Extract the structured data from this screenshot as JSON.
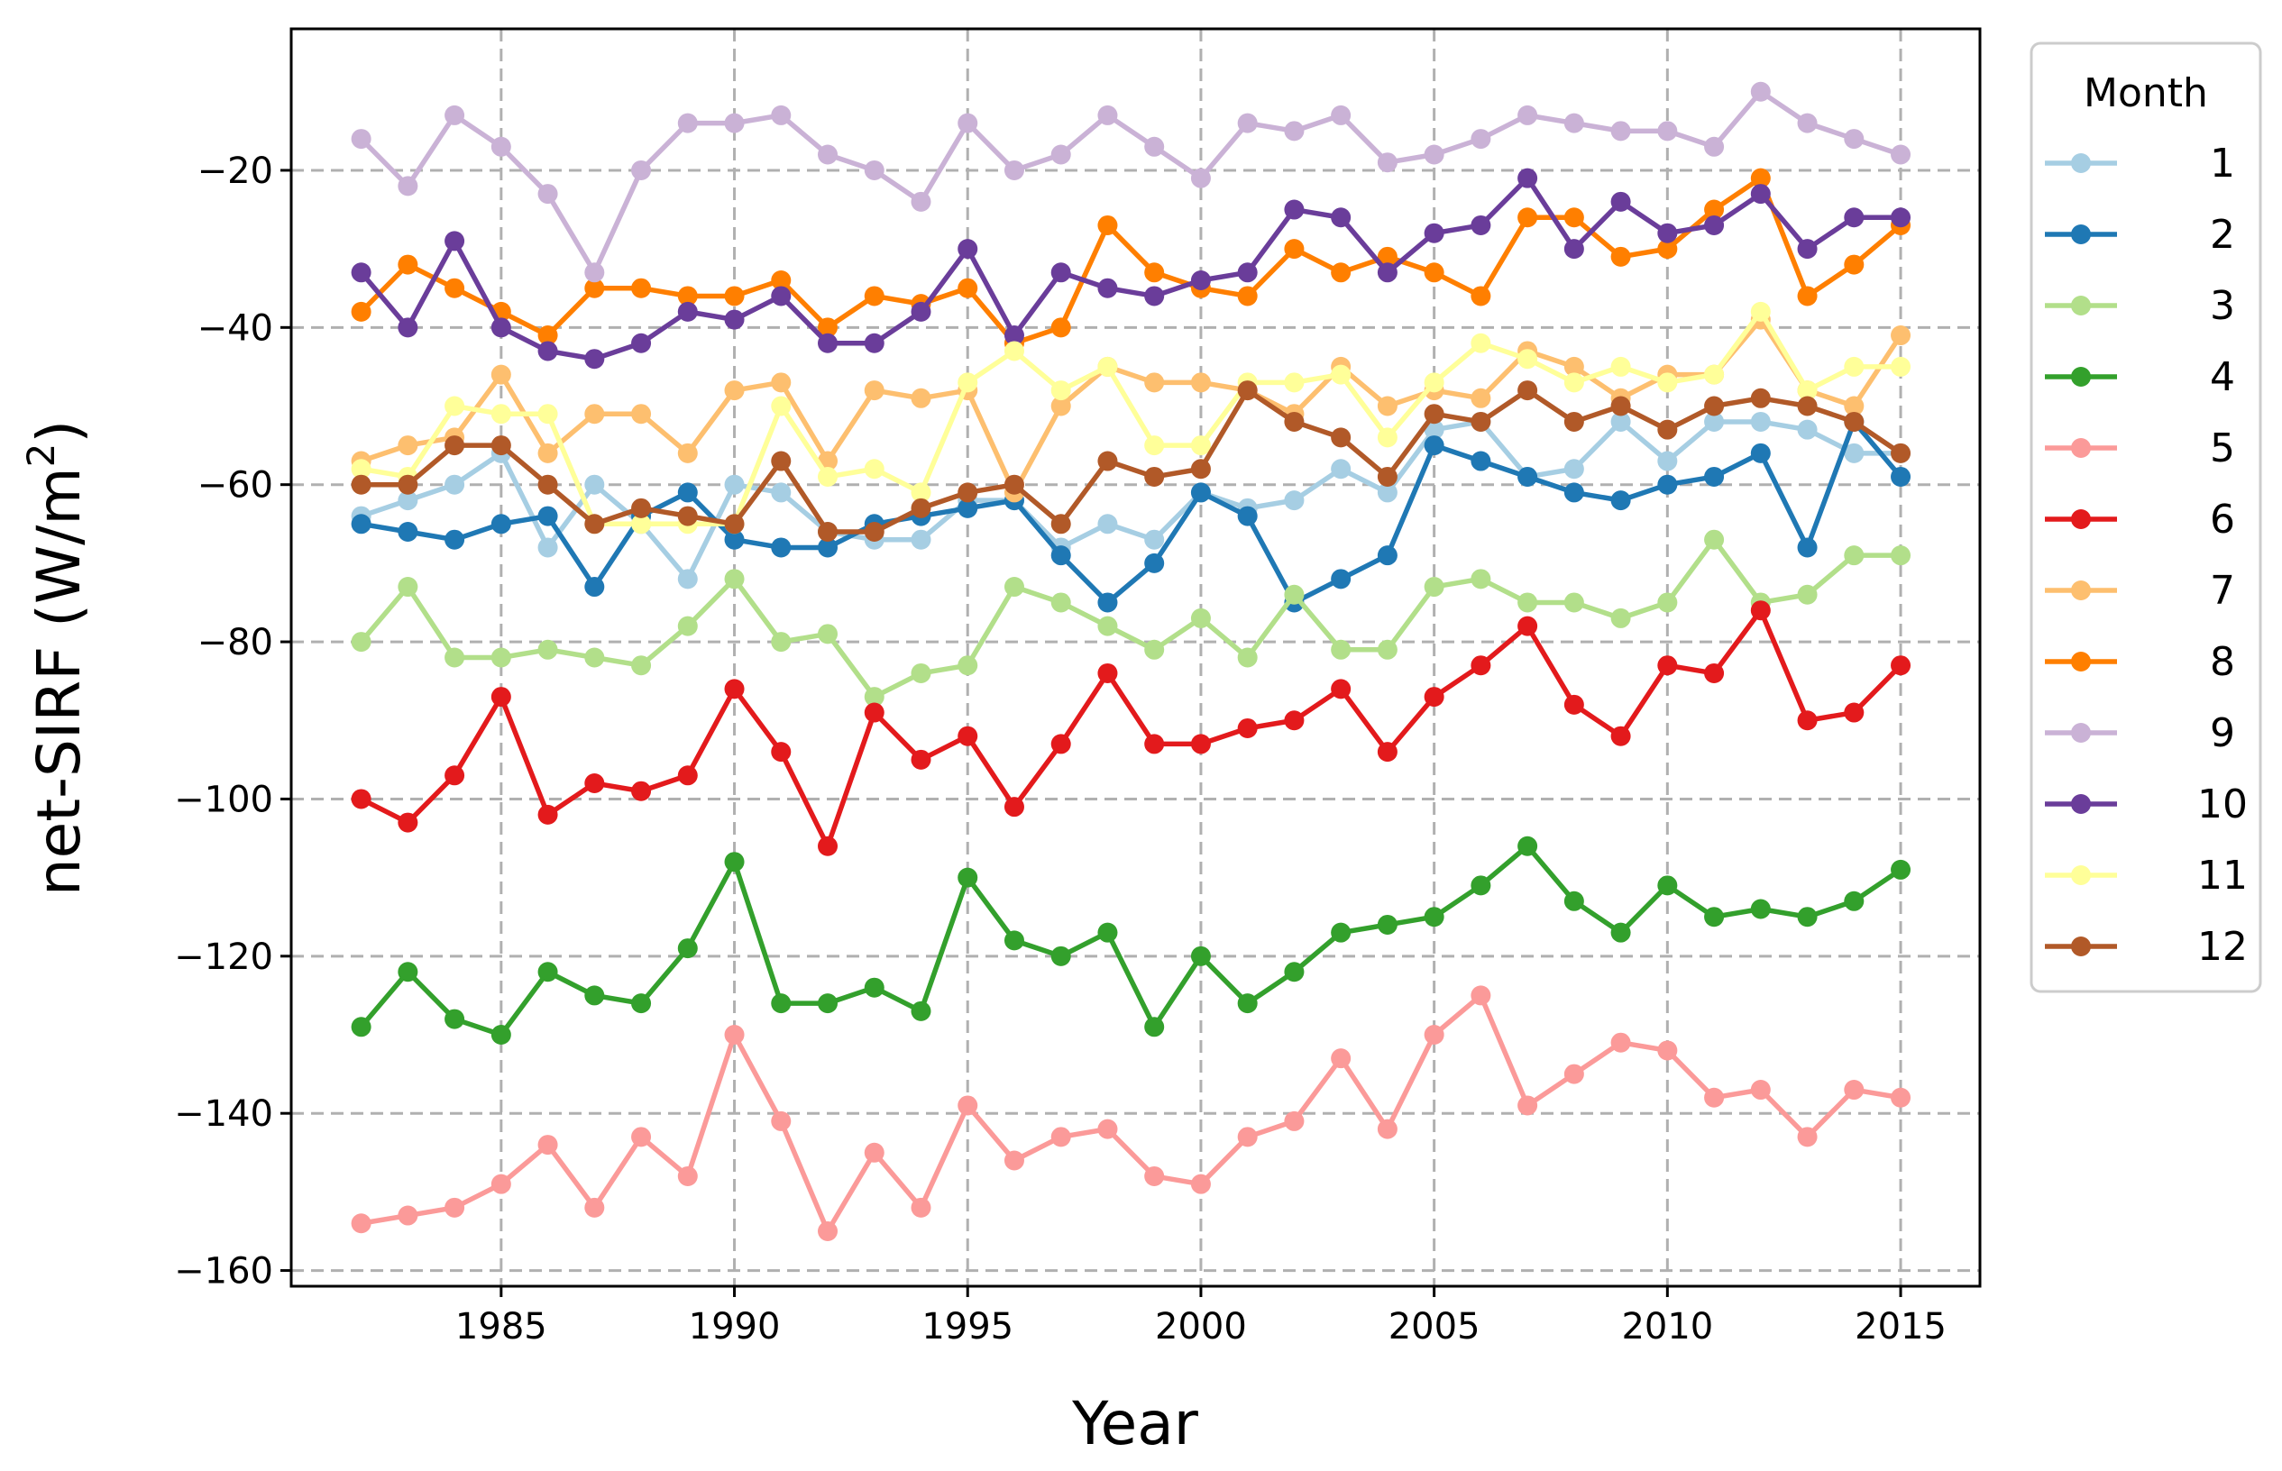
{
  "chart_data": {
    "type": "line",
    "title": "",
    "xlabel": "Year",
    "ylabel_main": "net-SIRF (W/m",
    "ylabel_sup": "2",
    "ylabel_close": ")",
    "xlim": [
      1980.5,
      2016.7
    ],
    "ylim": [
      -162,
      -2
    ],
    "xticks": [
      1985,
      1990,
      1995,
      2000,
      2005,
      2010,
      2015
    ],
    "xtick_labels": [
      "1985",
      "1990",
      "1995",
      "2000",
      "2005",
      "2010",
      "2015"
    ],
    "yticks": [
      -160,
      -140,
      -120,
      -100,
      -80,
      -60,
      -40,
      -20
    ],
    "ytick_labels": [
      "−160",
      "−140",
      "−120",
      "−100",
      "−80",
      "−60",
      "−40",
      "−20"
    ],
    "grid": true,
    "legend": {
      "title": "Month",
      "position": "outside-right-top"
    },
    "x": [
      1982,
      1983,
      1984,
      1985,
      1986,
      1987,
      1988,
      1989,
      1990,
      1991,
      1992,
      1993,
      1994,
      1995,
      1996,
      1997,
      1998,
      1999,
      2000,
      2001,
      2002,
      2003,
      2004,
      2005,
      2006,
      2007,
      2008,
      2009,
      2010,
      2011,
      2012,
      2013,
      2014,
      2015
    ],
    "series": [
      {
        "name": "1",
        "color": "#a6cee3",
        "values": [
          -64,
          -62,
          -60,
          -56,
          -68,
          -60,
          -65,
          -72,
          -60,
          -61,
          -66,
          -67,
          -67,
          -62,
          -62,
          -68,
          -65,
          -67,
          -61,
          -63,
          -62,
          -58,
          -61,
          -53,
          -52,
          -59,
          -58,
          -52,
          -57,
          -52,
          -52,
          -53,
          -56,
          -56
        ]
      },
      {
        "name": "2",
        "color": "#1f78b4",
        "values": [
          -65,
          -66,
          -67,
          -65,
          -64,
          -73,
          -64,
          -61,
          -67,
          -68,
          -68,
          -65,
          -64,
          -63,
          -62,
          -69,
          -75,
          -70,
          -61,
          -64,
          -75,
          -72,
          -69,
          -55,
          -57,
          -59,
          -61,
          -62,
          -60,
          -59,
          -56,
          -68,
          -52,
          -59
        ]
      },
      {
        "name": "3",
        "color": "#b2df8a",
        "values": [
          -80,
          -73,
          -82,
          -82,
          -81,
          -82,
          -83,
          -78,
          -72,
          -80,
          -79,
          -87,
          -84,
          -83,
          -73,
          -75,
          -78,
          -81,
          -77,
          -82,
          -74,
          -81,
          -81,
          -73,
          -72,
          -75,
          -75,
          -77,
          -75,
          -67,
          -75,
          -74,
          -69,
          -69
        ]
      },
      {
        "name": "4",
        "color": "#33a02c",
        "values": [
          -129,
          -122,
          -128,
          -130,
          -122,
          -125,
          -126,
          -119,
          -108,
          -126,
          -126,
          -124,
          -127,
          -110,
          -118,
          -120,
          -117,
          -129,
          -120,
          -126,
          -122,
          -117,
          -116,
          -115,
          -111,
          -106,
          -113,
          -117,
          -111,
          -115,
          -114,
          -115,
          -113,
          -109
        ]
      },
      {
        "name": "5",
        "color": "#fb9a99",
        "values": [
          -154,
          -153,
          -152,
          -149,
          -144,
          -152,
          -143,
          -148,
          -130,
          -141,
          -155,
          -145,
          -152,
          -139,
          -146,
          -143,
          -142,
          -148,
          -149,
          -143,
          -141,
          -133,
          -142,
          -130,
          -125,
          -139,
          -135,
          -131,
          -132,
          -138,
          -137,
          -143,
          -137,
          -138
        ]
      },
      {
        "name": "6",
        "color": "#e31a1c",
        "values": [
          -100,
          -103,
          -97,
          -87,
          -102,
          -98,
          -99,
          -97,
          -86,
          -94,
          -106,
          -89,
          -95,
          -92,
          -101,
          -93,
          -84,
          -93,
          -93,
          -91,
          -90,
          -86,
          -94,
          -87,
          -83,
          -78,
          -88,
          -92,
          -83,
          -84,
          -76,
          -90,
          -89,
          -83
        ]
      },
      {
        "name": "7",
        "color": "#fdbf6f",
        "values": [
          -57,
          -55,
          -54,
          -46,
          -56,
          -51,
          -51,
          -56,
          -48,
          -47,
          -57,
          -48,
          -49,
          -48,
          -61,
          -50,
          -45,
          -47,
          -47,
          -48,
          -51,
          -45,
          -50,
          -48,
          -49,
          -43,
          -45,
          -49,
          -46,
          -46,
          -39,
          -48,
          -50,
          -41
        ]
      },
      {
        "name": "8",
        "color": "#ff7f00",
        "values": [
          -38,
          -32,
          -35,
          -38,
          -41,
          -35,
          -35,
          -36,
          -36,
          -34,
          -40,
          -36,
          -37,
          -35,
          -42,
          -40,
          -27,
          -33,
          -35,
          -36,
          -30,
          -33,
          -31,
          -33,
          -36,
          -26,
          -26,
          -31,
          -30,
          -25,
          -21,
          -36,
          -32,
          -27
        ]
      },
      {
        "name": "9",
        "color": "#cab2d6",
        "values": [
          -16,
          -22,
          -13,
          -17,
          -23,
          -33,
          -20,
          -14,
          -14,
          -13,
          -18,
          -20,
          -24,
          -14,
          -20,
          -18,
          -13,
          -17,
          -21,
          -14,
          -15,
          -13,
          -19,
          -18,
          -16,
          -13,
          -14,
          -15,
          -15,
          -17,
          -10,
          -14,
          -16,
          -18
        ]
      },
      {
        "name": "10",
        "color": "#6a3d9a",
        "values": [
          -33,
          -40,
          -29,
          -40,
          -43,
          -44,
          -42,
          -38,
          -39,
          -36,
          -42,
          -42,
          -38,
          -30,
          -41,
          -33,
          -35,
          -36,
          -34,
          -33,
          -25,
          -26,
          -33,
          -28,
          -27,
          -21,
          -30,
          -24,
          -28,
          -27,
          -23,
          -30,
          -26,
          -26
        ]
      },
      {
        "name": "11",
        "color": "#ffff99",
        "values": [
          -58,
          -59,
          -50,
          -51,
          -51,
          -65,
          -65,
          -65,
          -65,
          -50,
          -59,
          -58,
          -61,
          -47,
          -43,
          -48,
          -45,
          -55,
          -55,
          -47,
          -47,
          -46,
          -54,
          -47,
          -42,
          -44,
          -47,
          -45,
          -47,
          -46,
          -38,
          -48,
          -45,
          -45
        ]
      },
      {
        "name": "12",
        "color": "#b15928",
        "values": [
          -60,
          -60,
          -55,
          -55,
          -60,
          -65,
          -63,
          -64,
          -65,
          -57,
          -66,
          -66,
          -63,
          -61,
          -60,
          -65,
          -57,
          -59,
          -58,
          -48,
          -52,
          -54,
          -59,
          -51,
          -52,
          -48,
          -52,
          -50,
          -53,
          -50,
          -49,
          -50,
          -52,
          -56
        ]
      }
    ]
  }
}
